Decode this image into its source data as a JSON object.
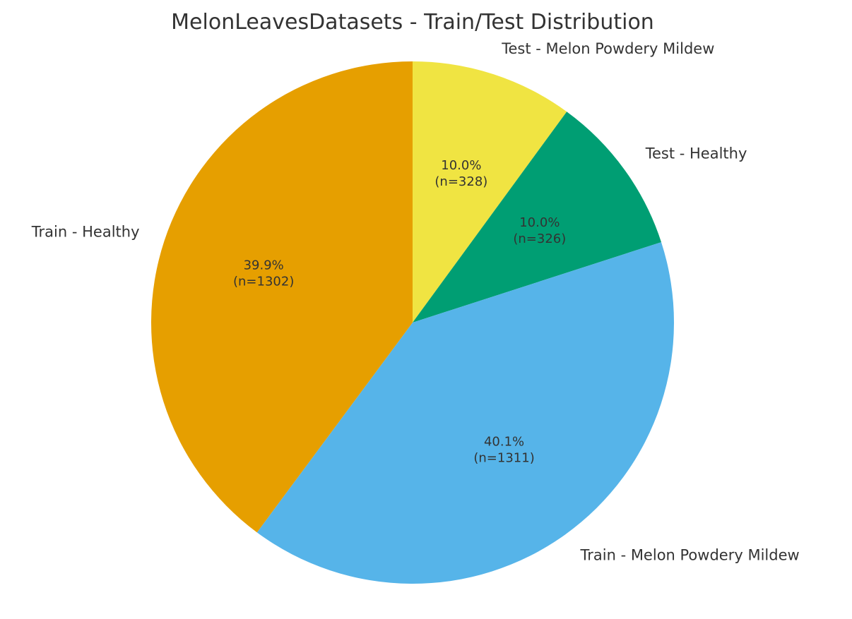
{
  "chart_data": {
    "type": "pie",
    "title": "MelonLeavesDatasets - Train/Test Distribution",
    "slices": [
      {
        "label": "Test - Melon Powdery Mildew",
        "value": 328,
        "percent_text": "10.0%",
        "count_text": "(n=328)",
        "color": "#f0e442"
      },
      {
        "label": "Test - Healthy",
        "value": 326,
        "percent_text": "10.0%",
        "count_text": "(n=326)",
        "color": "#009e73"
      },
      {
        "label": "Train - Melon Powdery Mildew",
        "value": 1311,
        "percent_text": "40.1%",
        "count_text": "(n=1311)",
        "color": "#56b4e9"
      },
      {
        "label": "Train - Healthy",
        "value": 1302,
        "percent_text": "39.9%",
        "count_text": "(n=1302)",
        "color": "#e69f00"
      }
    ],
    "start_angle": "top (12 o'clock)",
    "direction": "clockwise",
    "legend": "none"
  }
}
